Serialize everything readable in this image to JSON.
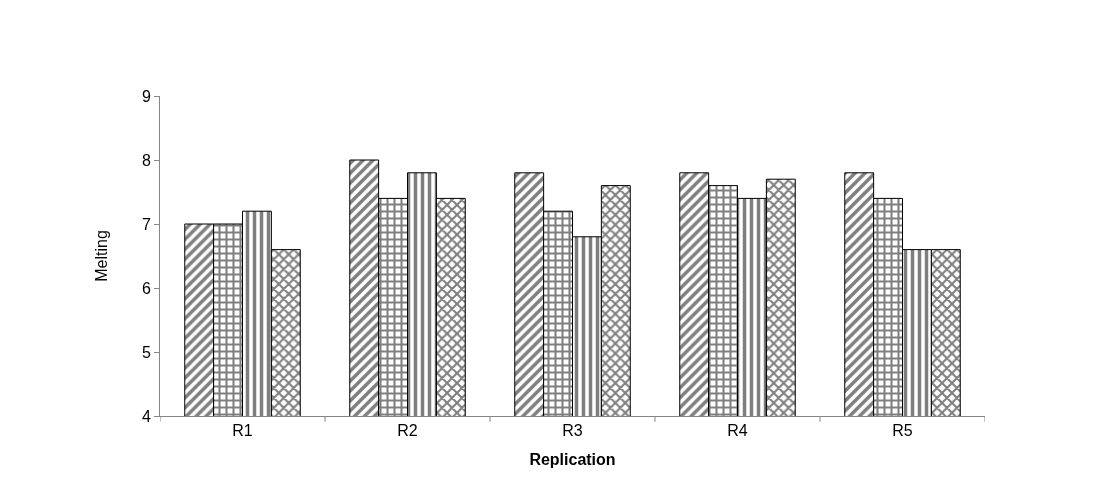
{
  "chart_data": {
    "type": "bar",
    "xlabel": "Replication",
    "ylabel": "Melting",
    "categories": [
      "R1",
      "R2",
      "R3",
      "R4",
      "R5"
    ],
    "series": [
      {
        "color": "#000000",
        "values": [
          7.0,
          8.0,
          7.8,
          7.8,
          7.8
        ]
      },
      {
        "color": "#000000",
        "values": [
          7.0,
          7.4,
          7.2,
          7.6,
          7.4
        ]
      },
      {
        "color": "#000000",
        "values": [
          7.2,
          7.8,
          6.8,
          7.4,
          6.6
        ]
      },
      {
        "color": "#000000",
        "values": [
          6.6,
          7.4,
          7.6,
          7.7,
          6.6
        ]
      }
    ],
    "ylim": [
      4,
      9
    ],
    "yticks": [
      4,
      5,
      6,
      7,
      8,
      9
    ]
  }
}
